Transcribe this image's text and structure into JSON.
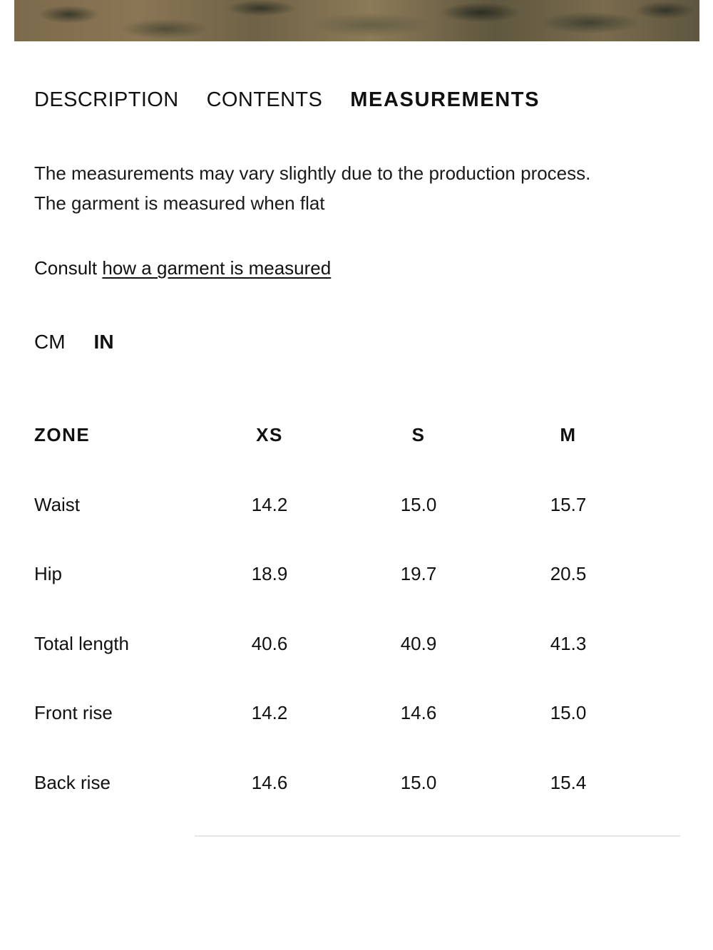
{
  "tabs": [
    {
      "label": "DESCRIPTION",
      "active": false
    },
    {
      "label": "CONTENTS",
      "active": false
    },
    {
      "label": "MEASUREMENTS",
      "active": true
    }
  ],
  "note": {
    "line1": "The measurements may vary slightly due to the production process.",
    "line2": "The garment is measured when flat"
  },
  "consult": {
    "prefix": "Consult ",
    "link": "how a garment is measured"
  },
  "units": [
    {
      "label": "CM",
      "active": false
    },
    {
      "label": "IN",
      "active": true
    }
  ],
  "table": {
    "headers": [
      "ZONE",
      "XS",
      "S",
      "M"
    ],
    "rows": [
      {
        "zone": "Waist",
        "values": [
          "14.2",
          "15.0",
          "15.7"
        ]
      },
      {
        "zone": "Hip",
        "values": [
          "18.9",
          "19.7",
          "20.5"
        ]
      },
      {
        "zone": "Total length",
        "values": [
          "40.6",
          "40.9",
          "41.3"
        ]
      },
      {
        "zone": "Front rise",
        "values": [
          "14.2",
          "14.6",
          "15.0"
        ]
      },
      {
        "zone": "Back rise",
        "values": [
          "14.6",
          "15.0",
          "15.4"
        ]
      }
    ]
  }
}
